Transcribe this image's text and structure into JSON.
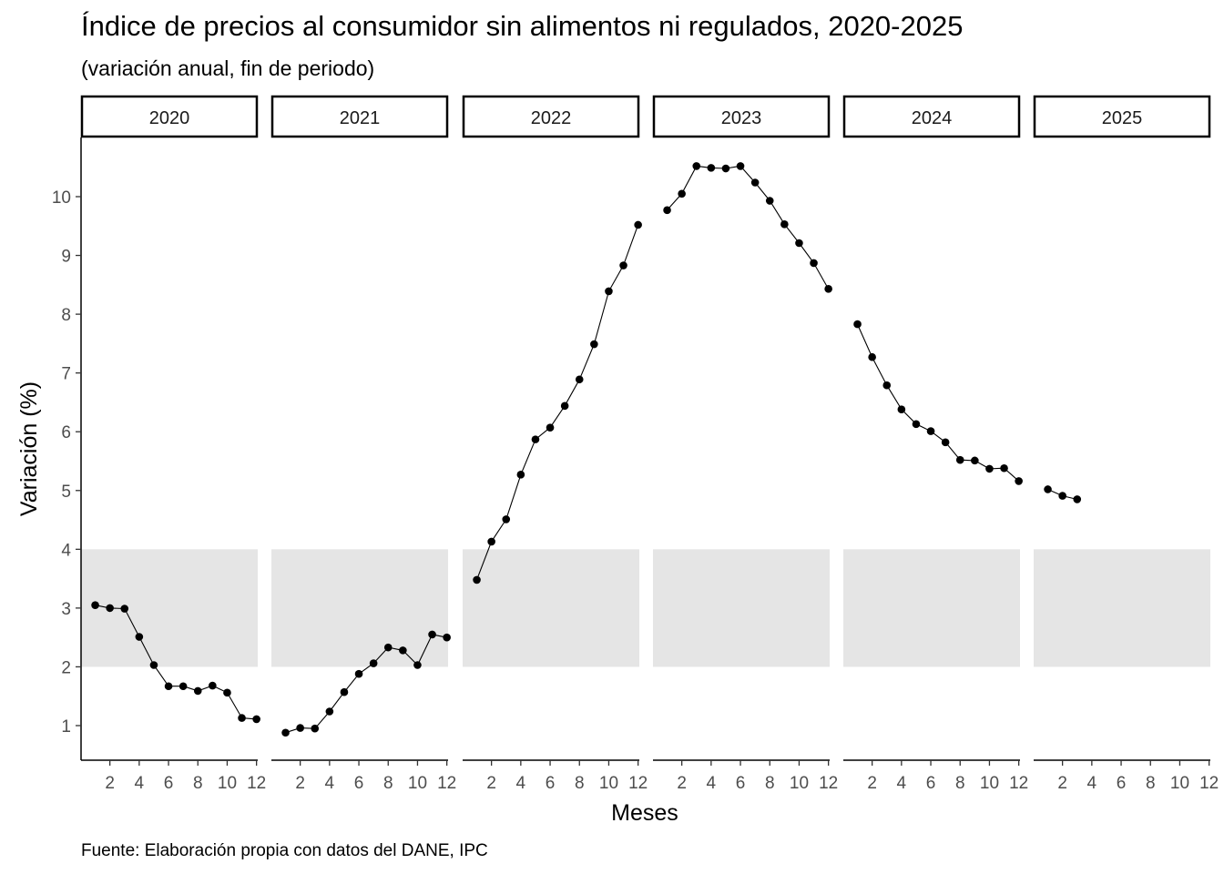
{
  "chart_data": {
    "type": "line",
    "title": "Índice de precios al consumidor sin alimentos ni regulados, 2020-2025",
    "subtitle": "(variación anual, fin de periodo)",
    "xlabel": "Meses",
    "ylabel": "Variación (%)",
    "caption": "Fuente: Elaboración propia con datos del DANE, IPC",
    "x_ticks": [
      "2",
      "4",
      "6",
      "8",
      "10",
      "12"
    ],
    "y_ticks": [
      "1",
      "2",
      "3",
      "4",
      "5",
      "6",
      "7",
      "8",
      "9",
      "10"
    ],
    "xlim": [
      0.5,
      12.5
    ],
    "ylim": [
      0.4,
      11
    ],
    "target_band": [
      2,
      4
    ],
    "grid": false,
    "colors": {
      "band": "#e5e5e5",
      "line": "#000000",
      "point": "#000000",
      "strip_border": "#000000"
    },
    "panels": [
      {
        "name": "2020",
        "x": [
          1,
          2,
          3,
          4,
          5,
          6,
          7,
          8,
          9,
          10,
          11,
          12
        ],
        "values": [
          3.05,
          3.0,
          2.99,
          2.51,
          2.03,
          1.67,
          1.67,
          1.59,
          1.68,
          1.56,
          1.13,
          1.11
        ]
      },
      {
        "name": "2021",
        "x": [
          1,
          2,
          3,
          4,
          5,
          6,
          7,
          8,
          9,
          10,
          11,
          12
        ],
        "values": [
          0.88,
          0.96,
          0.95,
          1.24,
          1.57,
          1.88,
          2.06,
          2.33,
          2.28,
          2.03,
          2.55,
          2.5
        ]
      },
      {
        "name": "2022",
        "x": [
          1,
          2,
          3,
          4,
          5,
          6,
          7,
          8,
          9,
          10,
          11,
          12
        ],
        "values": [
          3.48,
          4.13,
          4.51,
          5.27,
          5.87,
          6.07,
          6.44,
          6.89,
          7.49,
          8.39,
          8.83,
          9.52
        ]
      },
      {
        "name": "2023",
        "x": [
          1,
          2,
          3,
          4,
          5,
          6,
          7,
          8,
          9,
          10,
          11,
          12
        ],
        "values": [
          9.77,
          10.05,
          10.52,
          10.49,
          10.48,
          10.52,
          10.24,
          9.93,
          9.53,
          9.21,
          8.87,
          8.43
        ]
      },
      {
        "name": "2024",
        "x": [
          1,
          2,
          3,
          4,
          5,
          6,
          7,
          8,
          9,
          10,
          11,
          12
        ],
        "values": [
          7.83,
          7.27,
          6.79,
          6.38,
          6.13,
          6.01,
          5.82,
          5.52,
          5.51,
          5.37,
          5.38,
          5.16
        ]
      },
      {
        "name": "2025",
        "x": [
          1,
          2,
          3
        ],
        "values": [
          5.02,
          4.91,
          4.85
        ]
      }
    ]
  }
}
